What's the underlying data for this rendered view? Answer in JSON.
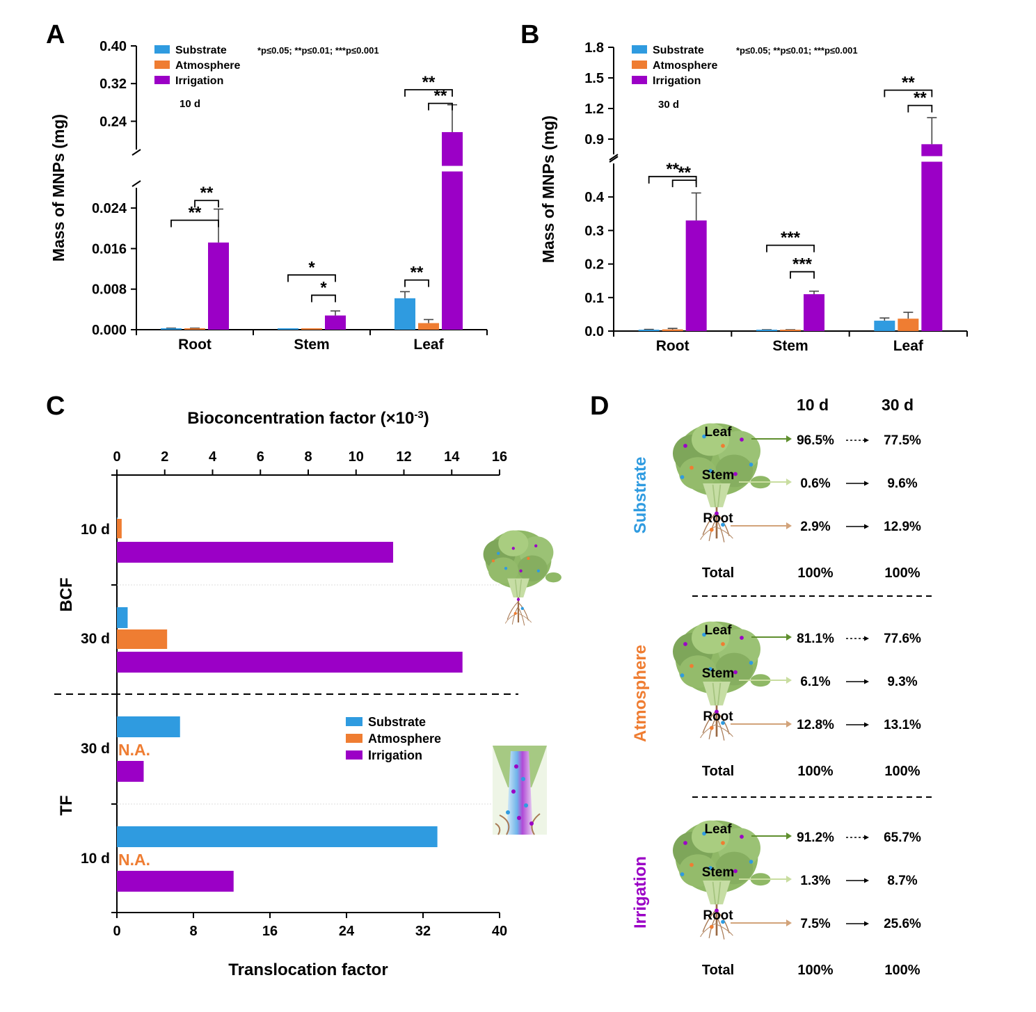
{
  "colors": {
    "substrate": "#2f9be0",
    "atmosphere": "#ef7d32",
    "irrigation": "#9b00c6",
    "leaf_arrow": "#5f8f2e",
    "stem_arrow": "#c9dda0",
    "root_arrow": "#d2a37a"
  },
  "legend": [
    "Substrate",
    "Atmosphere",
    "Irrigation"
  ],
  "significance_note": "*p≤0.05; **p≤0.01; ***p≤0.001",
  "chart_data": [
    {
      "panel": "A",
      "type": "bar",
      "subtitle": "10 d",
      "ylabel": "Mass of MNPs (mg)",
      "categories": [
        "Root",
        "Stem",
        "Leaf"
      ],
      "y_axis_break": {
        "lower": [
          0,
          0.028
        ],
        "upper": [
          0.18,
          0.4
        ]
      },
      "lower_ticks": [
        "0.000",
        "0.008",
        "0.016",
        "0.024"
      ],
      "lower_tick_values": [
        0,
        0.008,
        0.016,
        0.024
      ],
      "upper_ticks": [
        "0.24",
        "0.32",
        "0.40"
      ],
      "upper_tick_values": [
        0.24,
        0.32,
        0.4
      ],
      "series": [
        {
          "name": "Substrate",
          "values": [
            0.0002,
            0.0001,
            0.0062
          ],
          "errors": [
            0.0001,
            0.0,
            0.0013
          ]
        },
        {
          "name": "Atmosphere",
          "values": [
            0.0002,
            0.0001,
            0.0013
          ],
          "errors": [
            0.0001,
            0.0,
            0.0007
          ]
        },
        {
          "name": "Irrigation",
          "values": [
            0.0172,
            0.0028,
            0.217
          ],
          "errors": [
            0.0066,
            0.0009,
            0.058
          ]
        }
      ],
      "significance": [
        {
          "category": 0,
          "from": 0,
          "to": 2,
          "label": "**",
          "level": 0.03
        },
        {
          "category": 0,
          "from": 1,
          "to": 2,
          "label": "**",
          "level": 0.0255
        },
        {
          "category": 1,
          "from": 0,
          "to": 2,
          "label": "*",
          "level": 0.0108
        },
        {
          "category": 1,
          "from": 1,
          "to": 2,
          "label": "*",
          "level": 0.0068
        },
        {
          "category": 2,
          "from": 0,
          "to": 1,
          "label": "**",
          "level": 0.0098
        },
        {
          "category": 2,
          "from": 0,
          "to": 2,
          "label": "**",
          "level": 0.307
        },
        {
          "category": 2,
          "from": 1,
          "to": 2,
          "label": "**",
          "level": 0.278
        }
      ]
    },
    {
      "panel": "B",
      "type": "bar",
      "subtitle": "30 d",
      "ylabel": "Mass of MNPs (mg)",
      "categories": [
        "Root",
        "Stem",
        "Leaf"
      ],
      "y_axis_break": {
        "lower": [
          0,
          0.5
        ],
        "upper": [
          0.75,
          1.8
        ]
      },
      "lower_ticks": [
        "0.0",
        "0.1",
        "0.2",
        "0.3",
        "0.4"
      ],
      "lower_tick_values": [
        0,
        0.1,
        0.2,
        0.3,
        0.4
      ],
      "upper_ticks": [
        "0.9",
        "1.2",
        "1.5",
        "1.8"
      ],
      "upper_tick_values": [
        0.9,
        1.2,
        1.5,
        1.8
      ],
      "series": [
        {
          "name": "Substrate",
          "values": [
            0.003,
            0.003,
            0.031
          ],
          "errors": [
            0.002,
            0.001,
            0.008
          ]
        },
        {
          "name": "Atmosphere",
          "values": [
            0.005,
            0.003,
            0.037
          ],
          "errors": [
            0.003,
            0.001,
            0.019
          ]
        },
        {
          "name": "Irrigation",
          "values": [
            0.33,
            0.11,
            0.85
          ],
          "errors": [
            0.082,
            0.009,
            0.26
          ]
        }
      ],
      "significance": [
        {
          "category": 0,
          "from": 0,
          "to": 2,
          "label": "**",
          "level": 0.533
        },
        {
          "category": 0,
          "from": 1,
          "to": 2,
          "label": "**",
          "level": 0.45
        },
        {
          "category": 1,
          "from": 0,
          "to": 2,
          "label": "***",
          "level": 0.256
        },
        {
          "category": 1,
          "from": 1,
          "to": 2,
          "label": "***",
          "level": 0.177
        },
        {
          "category": 2,
          "from": 0,
          "to": 2,
          "label": "**",
          "level": 1.38
        },
        {
          "category": 2,
          "from": 1,
          "to": 2,
          "label": "**",
          "level": 1.23
        }
      ]
    },
    {
      "panel": "C",
      "type": "bar",
      "orientation": "horizontal",
      "top_axis": {
        "label": "Bioconcentration factor (×10",
        "label_sup": "-3",
        "label_end": ")",
        "ticks": [
          0,
          2,
          4,
          6,
          8,
          10,
          12,
          14,
          16
        ],
        "range": [
          0,
          16
        ]
      },
      "bottom_axis": {
        "label": "Translocation factor",
        "ticks": [
          0,
          8,
          16,
          24,
          32,
          40
        ],
        "range": [
          0,
          40
        ]
      },
      "group_labels": [
        "BCF",
        "TF"
      ],
      "groups": [
        {
          "group": "BCF",
          "label": "10 d",
          "values": {
            "Substrate": 0.02,
            "Atmosphere": 0.2,
            "Irrigation": 11.55
          }
        },
        {
          "group": "BCF",
          "label": "30 d",
          "values": {
            "Substrate": 0.45,
            "Atmosphere": 2.1,
            "Irrigation": 14.45
          }
        },
        {
          "group": "TF",
          "label": "30 d",
          "values": {
            "Substrate": 6.6,
            "Irrigation": 2.8
          },
          "na": "N.A."
        },
        {
          "group": "TF",
          "label": "10 d",
          "values": {
            "Substrate": 33.5,
            "Irrigation": 12.2
          },
          "na": "N.A."
        }
      ]
    },
    {
      "panel": "D",
      "type": "table",
      "columns": [
        "10 d",
        "30 d"
      ],
      "rows_labels": [
        "Leaf",
        "Stem",
        "Root",
        "Total"
      ],
      "treatments": [
        {
          "name": "Substrate",
          "leaf": [
            "96.5%",
            "77.5%"
          ],
          "stem": [
            "0.6%",
            "9.6%"
          ],
          "root": [
            "2.9%",
            "12.9%"
          ],
          "total": [
            "100%",
            "100%"
          ]
        },
        {
          "name": "Atmosphere",
          "leaf": [
            "81.1%",
            "77.6%"
          ],
          "stem": [
            "6.1%",
            "9.3%"
          ],
          "root": [
            "12.8%",
            "13.1%"
          ],
          "total": [
            "100%",
            "100%"
          ]
        },
        {
          "name": "Irrigation",
          "leaf": [
            "91.2%",
            "65.7%"
          ],
          "stem": [
            "1.3%",
            "8.7%"
          ],
          "root": [
            "7.5%",
            "25.6%"
          ],
          "total": [
            "100%",
            "100%"
          ]
        }
      ]
    }
  ]
}
